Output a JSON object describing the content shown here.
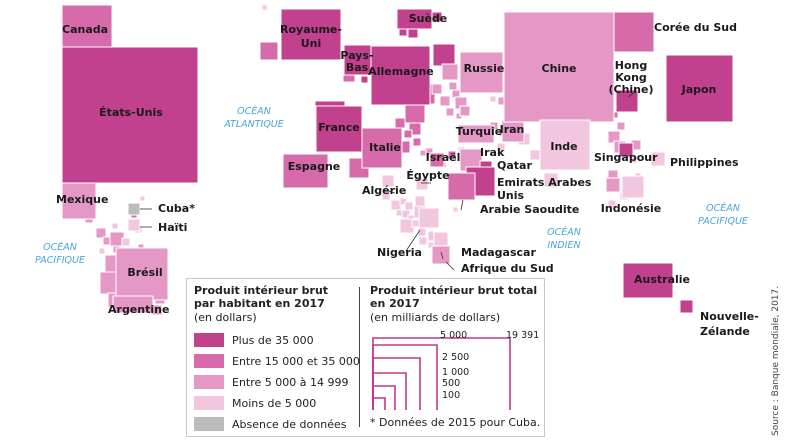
{
  "colors": {
    "class_1": "#c2418e",
    "class_2": "#d66aab",
    "class_3": "#e598c6",
    "class_4": "#f2c6df",
    "no_data": "#bcbcbc",
    "ocean_text": "#4aa6d6",
    "square_border": "#ffffff"
  },
  "legend": {
    "per_capita_title_1": "Produit intérieur brut",
    "per_capita_title_2": "par habitant en 2017",
    "per_capita_unit": "(en dollars)",
    "classes": [
      {
        "key": "class_1",
        "label": "Plus de 35 000"
      },
      {
        "key": "class_2",
        "label": "Entre 15 000 et 35 000"
      },
      {
        "key": "class_3",
        "label": "Entre 5 000 à 14 999"
      },
      {
        "key": "class_4",
        "label": "Moins de 5 000"
      },
      {
        "key": "no_data",
        "label": "Absence de données"
      }
    ],
    "total_title_1": "Produit intérieur brut total",
    "total_title_2": "en 2017",
    "total_unit": "(en milliards de dollars)",
    "sizes": [
      "100",
      "500",
      "1 000",
      "2 500",
      "5 000",
      "19 391"
    ],
    "footnote": "* Données de 2015 pour Cuba."
  },
  "oceans": [
    "OCÉAN",
    "ATLANTIQUE",
    "OCÉAN",
    "PACIFIQUE",
    "OCÉAN",
    "INDIEN",
    "OCÉAN",
    "PACIFIQUE"
  ],
  "countries": [
    {
      "name": "Canada",
      "class": "class_2"
    },
    {
      "name": "États-Unis",
      "class": "class_1"
    },
    {
      "name": "Mexique",
      "class": "class_3"
    },
    {
      "name": "Cuba*",
      "class": "no_data"
    },
    {
      "name": "Haïti",
      "class": "class_4"
    },
    {
      "name": "Brésil",
      "class": "class_3"
    },
    {
      "name": "Argentine",
      "class": "class_3"
    },
    {
      "name": "Royaume-Uni",
      "class": "class_1"
    },
    {
      "name": "Suède",
      "class": "class_1"
    },
    {
      "name": "Pays-Bas",
      "class": "class_1"
    },
    {
      "name": "Allemagne",
      "class": "class_1"
    },
    {
      "name": "Russie",
      "class": "class_3"
    },
    {
      "name": "France",
      "class": "class_1"
    },
    {
      "name": "Italie",
      "class": "class_2"
    },
    {
      "name": "Espagne",
      "class": "class_2"
    },
    {
      "name": "Turquie",
      "class": "class_3"
    },
    {
      "name": "Iran",
      "class": "class_3"
    },
    {
      "name": "Irak",
      "class": "class_3"
    },
    {
      "name": "Israël",
      "class": "class_2"
    },
    {
      "name": "Qatar",
      "class": "class_1"
    },
    {
      "name": "Emirats Arabes Unis",
      "class": "class_1"
    },
    {
      "name": "Arabie Saoudite",
      "class": "class_2"
    },
    {
      "name": "Algérie",
      "class": "class_4"
    },
    {
      "name": "Égypte",
      "class": "class_4"
    },
    {
      "name": "Nigeria",
      "class": "class_4"
    },
    {
      "name": "Madagascar",
      "class": "class_4"
    },
    {
      "name": "Afrique du Sud",
      "class": "class_3"
    },
    {
      "name": "Chine",
      "class": "class_3"
    },
    {
      "name": "Corée du Sud",
      "class": "class_2"
    },
    {
      "name": "Japon",
      "class": "class_1"
    },
    {
      "name": "Hong Kong (Chine)",
      "class": "class_1"
    },
    {
      "name": "Inde",
      "class": "class_4"
    },
    {
      "name": "Singapour",
      "class": "class_1"
    },
    {
      "name": "Philippines",
      "class": "class_4"
    },
    {
      "name": "Indonésie",
      "class": "class_4"
    },
    {
      "name": "Australie",
      "class": "class_1"
    },
    {
      "name": "Nouvelle-Zélande",
      "class": "class_1"
    }
  ],
  "source": "Source : Banque mondiale, 2017."
}
